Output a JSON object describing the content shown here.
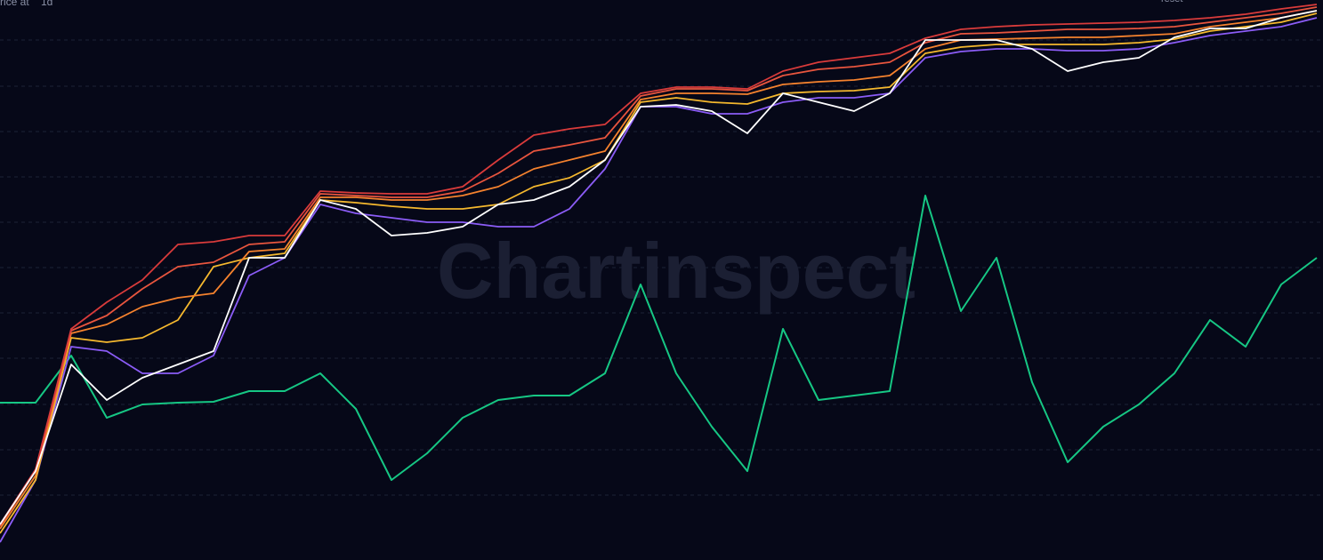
{
  "chart_data": {
    "type": "line",
    "header": {
      "interval_label": "rice at",
      "interval": "1d",
      "reset": "reset"
    },
    "watermark": "Chartinspect",
    "ylim": [
      0,
      630
    ],
    "series": [
      {
        "name": "Green",
        "color": "#16c784",
        "values": [
          177,
          177,
          230,
          160,
          175,
          177,
          178,
          190,
          190,
          210,
          170,
          90,
          120,
          160,
          180,
          185,
          185,
          210,
          310,
          210,
          150,
          100,
          260,
          180,
          185,
          190,
          410,
          280,
          340,
          200,
          110,
          150,
          175,
          210,
          270,
          240,
          310,
          340
        ]
      },
      {
        "name": "Purple",
        "color": "#8b5cf6",
        "values": [
          20,
          90,
          240,
          235,
          210,
          210,
          230,
          320,
          340,
          400,
          390,
          385,
          380,
          380,
          375,
          375,
          395,
          440,
          510,
          510,
          502,
          502,
          515,
          520,
          520,
          525,
          565,
          572,
          575,
          575,
          573,
          573,
          575,
          582,
          590,
          595,
          600,
          610
        ]
      },
      {
        "name": "Yellow",
        "color": "#f5b82e",
        "values": [
          30,
          90,
          250,
          245,
          250,
          270,
          330,
          340,
          345,
          405,
          402,
          398,
          395,
          395,
          400,
          420,
          430,
          450,
          515,
          520,
          515,
          513,
          525,
          527,
          528,
          532,
          570,
          577,
          580,
          580,
          580,
          580,
          582,
          586,
          595,
          600,
          605,
          615
        ]
      },
      {
        "name": "Orange",
        "color": "#f5822e",
        "values": [
          35,
          95,
          255,
          265,
          285,
          295,
          300,
          347,
          350,
          408,
          408,
          405,
          405,
          410,
          420,
          440,
          450,
          460,
          518,
          525,
          525,
          524,
          535,
          538,
          540,
          545,
          575,
          585,
          586,
          587,
          588,
          588,
          590,
          592,
          600,
          605,
          610,
          618
        ]
      },
      {
        "name": "Red-orange",
        "color": "#e8553e",
        "values": [
          38,
          100,
          258,
          275,
          305,
          330,
          335,
          355,
          358,
          412,
          410,
          408,
          408,
          415,
          435,
          460,
          467,
          475,
          522,
          530,
          530,
          528,
          545,
          552,
          555,
          560,
          582,
          592,
          593,
          595,
          597,
          597,
          598,
          600,
          605,
          610,
          615,
          622
        ]
      },
      {
        "name": "Red",
        "color": "#d93b3b",
        "values": [
          40,
          102,
          260,
          290,
          315,
          355,
          358,
          365,
          365,
          415,
          413,
          412,
          412,
          420,
          450,
          478,
          485,
          490,
          525,
          532,
          532,
          530,
          550,
          560,
          565,
          570,
          587,
          597,
          600,
          602,
          603,
          604,
          605,
          607,
          610,
          614,
          620,
          625
        ]
      },
      {
        "name": "Price",
        "color": "#ffffff",
        "values": [
          40,
          100,
          220,
          180,
          205,
          220,
          235,
          340,
          340,
          405,
          395,
          365,
          368,
          375,
          400,
          405,
          420,
          450,
          510,
          512,
          505,
          480,
          525,
          515,
          505,
          525,
          585,
          585,
          585,
          575,
          550,
          560,
          565,
          588,
          598,
          598,
          610,
          618
        ]
      }
    ]
  }
}
